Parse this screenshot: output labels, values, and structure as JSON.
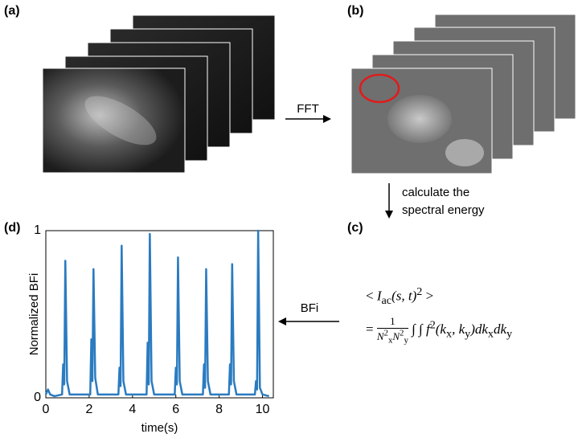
{
  "panels": {
    "a": "(a)",
    "b": "(b)",
    "c": "(c)",
    "d": "(d)"
  },
  "arrows": {
    "fft": "FFT",
    "spectral_line1": "calculate the",
    "spectral_line2": "spectral energy",
    "bfi": "BFi"
  },
  "formula": {
    "line1": [
      {
        "text": "< ",
        "style": "normal"
      },
      {
        "text": "I",
        "style": "italic"
      },
      {
        "text": "ac",
        "style": "sub"
      },
      {
        "text": "(s, t)",
        "style": "italic"
      },
      {
        "text": "2",
        "style": "sup"
      },
      {
        "text": " >",
        "style": "normal"
      }
    ],
    "equals": "=",
    "numerator": "1",
    "denominator": [
      {
        "text": "N",
        "style": "italic"
      },
      {
        "text": "2",
        "style": "sup"
      },
      {
        "text": "x",
        "style": "sub"
      },
      {
        "text": "N",
        "style": "italic"
      },
      {
        "text": "2",
        "style": "sup"
      },
      {
        "text": "y",
        "style": "sub"
      }
    ],
    "rest": [
      {
        "text": "∫ ∫ ",
        "style": "normal"
      },
      {
        "text": "f",
        "style": "italic"
      },
      {
        "text": "2",
        "style": "sup"
      },
      {
        "text": "(k",
        "style": "italic"
      },
      {
        "text": "x",
        "style": "sub"
      },
      {
        "text": ", k",
        "style": "italic"
      },
      {
        "text": "y",
        "style": "sub"
      },
      {
        "text": ")dk",
        "style": "italic"
      },
      {
        "text": "x",
        "style": "sub"
      },
      {
        "text": "dk",
        "style": "italic"
      },
      {
        "text": "y",
        "style": "sub"
      }
    ]
  },
  "chart_data": {
    "type": "line",
    "xlabel": "time(s)",
    "ylabel": "Normalized BFi",
    "x": [
      0,
      0.1,
      0.2,
      0.4,
      0.75,
      0.8,
      0.85,
      0.9,
      0.98,
      1.1,
      2.05,
      2.1,
      2.15,
      2.2,
      2.28,
      2.4,
      3.35,
      3.4,
      3.45,
      3.5,
      3.58,
      3.7,
      4.65,
      4.7,
      4.75,
      4.8,
      4.88,
      5.0,
      5.95,
      6.0,
      6.05,
      6.1,
      6.18,
      6.3,
      7.25,
      7.3,
      7.35,
      7.4,
      7.48,
      7.6,
      8.45,
      8.5,
      8.55,
      8.6,
      8.68,
      8.8,
      9.65,
      9.7,
      9.75,
      9.8,
      9.88,
      10.0,
      10.3
    ],
    "series": [
      {
        "name": "BFi",
        "color": "#2b7bc0",
        "values": [
          0.02,
          0.05,
          0.02,
          0.01,
          0.02,
          0.2,
          0.08,
          0.82,
          0.1,
          0.02,
          0.02,
          0.35,
          0.1,
          0.77,
          0.12,
          0.02,
          0.02,
          0.18,
          0.07,
          0.91,
          0.1,
          0.02,
          0.02,
          0.33,
          0.08,
          0.98,
          0.1,
          0.02,
          0.02,
          0.18,
          0.08,
          0.84,
          0.1,
          0.02,
          0.02,
          0.2,
          0.06,
          0.77,
          0.1,
          0.02,
          0.02,
          0.2,
          0.08,
          0.8,
          0.1,
          0.02,
          0.02,
          0.1,
          0.05,
          1.0,
          0.06,
          0.02,
          0.01
        ]
      }
    ],
    "xlim": [
      0,
      10.5
    ],
    "ylim": [
      0,
      1
    ],
    "xticks": [
      0,
      2,
      4,
      6,
      8,
      10
    ],
    "yticks": [
      0,
      1
    ]
  }
}
